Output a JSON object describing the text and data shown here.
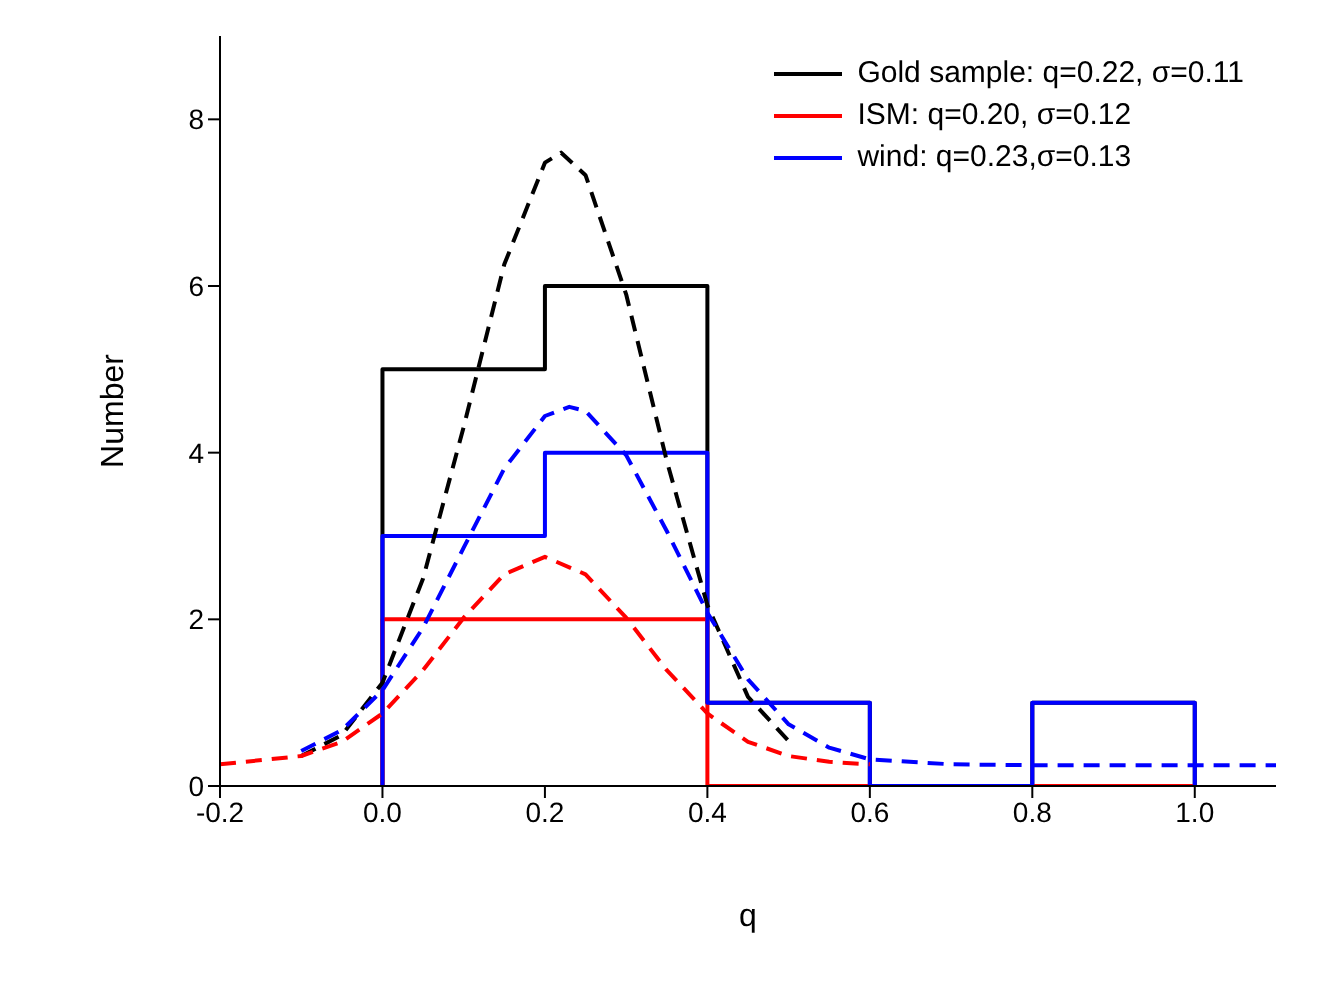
{
  "chart_data": {
    "type": "histogram",
    "xlabel": "q",
    "ylabel": "Number",
    "bins": [
      0,
      0.2,
      0.4,
      0.6,
      0.8,
      1.0
    ],
    "series": [
      {
        "name": "Gold sample: q=0.22, σ=0.11",
        "color": "#000000",
        "values": [
          5,
          6,
          1,
          0,
          1
        ]
      },
      {
        "name": "ISM: q=0.20, σ=0.12",
        "color": "#ff0000",
        "values": [
          2,
          2,
          0,
          0,
          0
        ]
      },
      {
        "name": "wind: q=0.23,σ=0.13",
        "color": "#0000ff",
        "values": [
          3,
          4,
          1,
          0,
          1
        ]
      },
      {
        "type": "line",
        "line_style": "dashed",
        "color": "#000000",
        "x": [
          -0.1,
          -0.05,
          0,
          0.05,
          0.1,
          0.15,
          0.2,
          0.22,
          0.25,
          0.3,
          0.35,
          0.4,
          0.45,
          0.5
        ],
        "values": [
          0.36,
          0.61,
          1.24,
          2.49,
          4.31,
          6.26,
          7.48,
          7.6,
          7.33,
          5.9,
          3.9,
          2.17,
          1.07,
          0.54
        ]
      },
      {
        "type": "line",
        "line_style": "dashed",
        "color": "#ff0000",
        "x": [
          -0.2,
          -0.1,
          -0.05,
          0,
          0.05,
          0.1,
          0.15,
          0.2,
          0.25,
          0.3,
          0.35,
          0.4,
          0.45,
          0.5,
          0.55,
          0.6
        ],
        "values": [
          0.26,
          0.36,
          0.53,
          0.87,
          1.39,
          2.02,
          2.54,
          2.75,
          2.54,
          2.02,
          1.39,
          0.87,
          0.53,
          0.36,
          0.29,
          0.26
        ]
      },
      {
        "type": "line",
        "line_style": "dashed",
        "color": "#0000ff",
        "x": [
          -0.1,
          -0.05,
          0,
          0.05,
          0.1,
          0.15,
          0.2,
          0.23,
          0.25,
          0.3,
          0.35,
          0.4,
          0.45,
          0.5,
          0.55,
          0.6,
          0.7,
          0.8,
          0.9,
          1.0,
          1.1
        ],
        "values": [
          0.42,
          0.67,
          1.15,
          1.9,
          2.86,
          3.81,
          4.44,
          4.55,
          4.5,
          3.97,
          3.06,
          2.08,
          1.28,
          0.74,
          0.46,
          0.32,
          0.26,
          0.25,
          0.25,
          0.25,
          0.25
        ]
      }
    ],
    "xlim": [
      -0.2,
      1.1
    ],
    "xticks": [
      {
        "value": -0.2,
        "label": "-0.2"
      },
      {
        "value": 0,
        "label": "0.0"
      },
      {
        "value": 0.2,
        "label": "0.2"
      },
      {
        "value": 0.4,
        "label": "0.4"
      },
      {
        "value": 0.6,
        "label": "0.6"
      },
      {
        "value": 0.8,
        "label": "0.8"
      },
      {
        "value": 1.0,
        "label": "1.0"
      }
    ],
    "ylim": [
      0,
      9
    ],
    "yticks": [
      0,
      2,
      4,
      6,
      8
    ],
    "legend": "top right"
  }
}
